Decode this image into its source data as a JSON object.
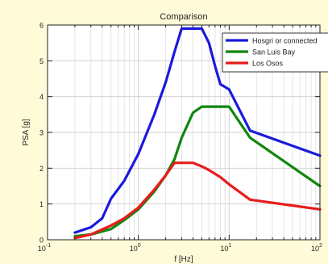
{
  "chart_data": {
    "type": "line",
    "title": "Comparison",
    "xlabel": "f [Hz]",
    "ylabel": "PSA [g]",
    "xscale": "log",
    "xlim": [
      0.1,
      100
    ],
    "ylim": [
      0,
      6
    ],
    "grid": true,
    "legend_position": "top-right",
    "x_ticks": [
      {
        "value": 0.1,
        "base": "10",
        "exp": "-1"
      },
      {
        "value": 1,
        "base": "10",
        "exp": "0"
      },
      {
        "value": 10,
        "base": "10",
        "exp": "1"
      },
      {
        "value": 100,
        "base": "10",
        "exp": "2"
      }
    ],
    "y_ticks": [
      {
        "value": 0,
        "label": "0"
      },
      {
        "value": 1,
        "label": "1"
      },
      {
        "value": 2,
        "label": "2"
      },
      {
        "value": 3,
        "label": "3"
      },
      {
        "value": 4,
        "label": "4"
      },
      {
        "value": 5,
        "label": "5"
      },
      {
        "value": 6,
        "label": "6"
      }
    ],
    "series": [
      {
        "name": "Hosgri or connected",
        "color": "#1a1add",
        "x": [
          0.2,
          0.3,
          0.4,
          0.5,
          0.7,
          1.0,
          1.5,
          2.0,
          2.5,
          3.0,
          4.0,
          5.0,
          6.0,
          7.0,
          8.0,
          10.0,
          17.0,
          100.0
        ],
        "y": [
          0.2,
          0.35,
          0.6,
          1.15,
          1.65,
          2.4,
          3.5,
          4.4,
          5.25,
          5.9,
          5.9,
          5.9,
          5.5,
          4.85,
          4.35,
          4.2,
          3.05,
          2.35
        ]
      },
      {
        "name": "San Luis Bay",
        "color": "#0f860f",
        "x": [
          0.2,
          0.3,
          0.5,
          0.7,
          1.0,
          1.5,
          2.0,
          2.5,
          3.0,
          4.0,
          5.0,
          10.0,
          17.0,
          100.0
        ],
        "y": [
          0.1,
          0.15,
          0.3,
          0.55,
          0.85,
          1.35,
          1.8,
          2.25,
          2.85,
          3.55,
          3.72,
          3.72,
          2.85,
          1.5
        ]
      },
      {
        "name": "Los Osos",
        "color": "#e81c1c",
        "x": [
          0.2,
          0.3,
          0.5,
          0.7,
          1.0,
          1.5,
          2.0,
          2.5,
          3.0,
          4.0,
          5.0,
          6.0,
          8.0,
          10.0,
          17.0,
          100.0
        ],
        "y": [
          0.05,
          0.15,
          0.4,
          0.6,
          0.9,
          1.4,
          1.8,
          2.15,
          2.15,
          2.15,
          2.05,
          1.95,
          1.75,
          1.55,
          1.12,
          0.85
        ]
      }
    ]
  }
}
